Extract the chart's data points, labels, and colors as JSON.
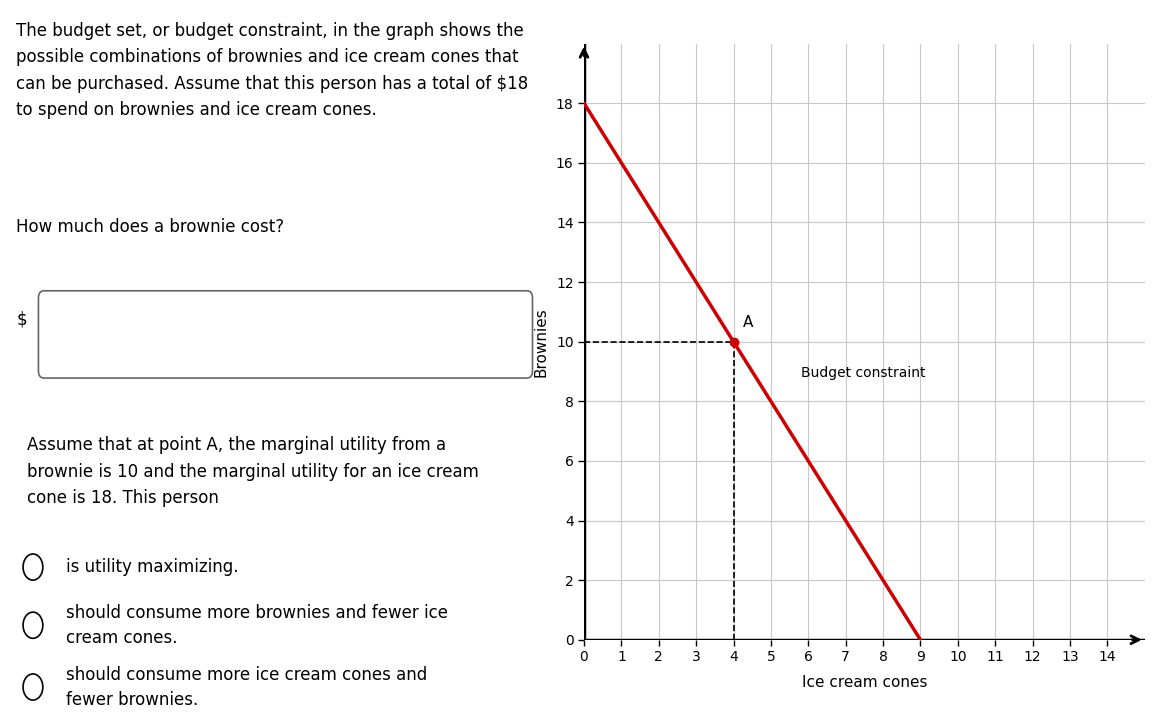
{
  "budget_line_x": [
    0,
    9
  ],
  "budget_line_y": [
    18,
    0
  ],
  "point_A_x": 4,
  "point_A_y": 10,
  "point_A_label": "A",
  "dashed_color": "#000000",
  "line_color": "#cc0000",
  "point_color": "#cc0000",
  "ylabel": "Brownies",
  "xlabel": "Ice cream cones",
  "budget_label": "Budget constraint",
  "xlim": [
    0,
    15
  ],
  "ylim": [
    0,
    20
  ],
  "xticks": [
    0,
    1,
    2,
    3,
    4,
    5,
    6,
    7,
    8,
    9,
    10,
    11,
    12,
    13,
    14
  ],
  "yticks": [
    0,
    2,
    4,
    6,
    8,
    10,
    12,
    14,
    16,
    18
  ],
  "grid_color": "#c8c8c8",
  "background_color": "#ffffff",
  "fig_width": 11.68,
  "fig_height": 7.27,
  "axis_fontsize": 11,
  "tick_fontsize": 10,
  "text_fontsize": 12,
  "para1": "The budget set, or budget constraint, in the graph shows the\npossible combinations of brownies and ice cream cones that\ncan be purchased. Assume that this person has a total of $18\nto spend on brownies and ice cream cones.",
  "para2": "How much does a brownie cost?",
  "para3": "Assume that at point A, the marginal utility from a\nbrownie is 10 and the marginal utility for an ice cream\ncone is 18. This person",
  "choice1": "is utility maximizing.",
  "choice2": "should consume more brownies and fewer ice\ncream cones.",
  "choice3": "should consume more ice cream cones and\nfewer brownies.",
  "dollar_sign": "$"
}
